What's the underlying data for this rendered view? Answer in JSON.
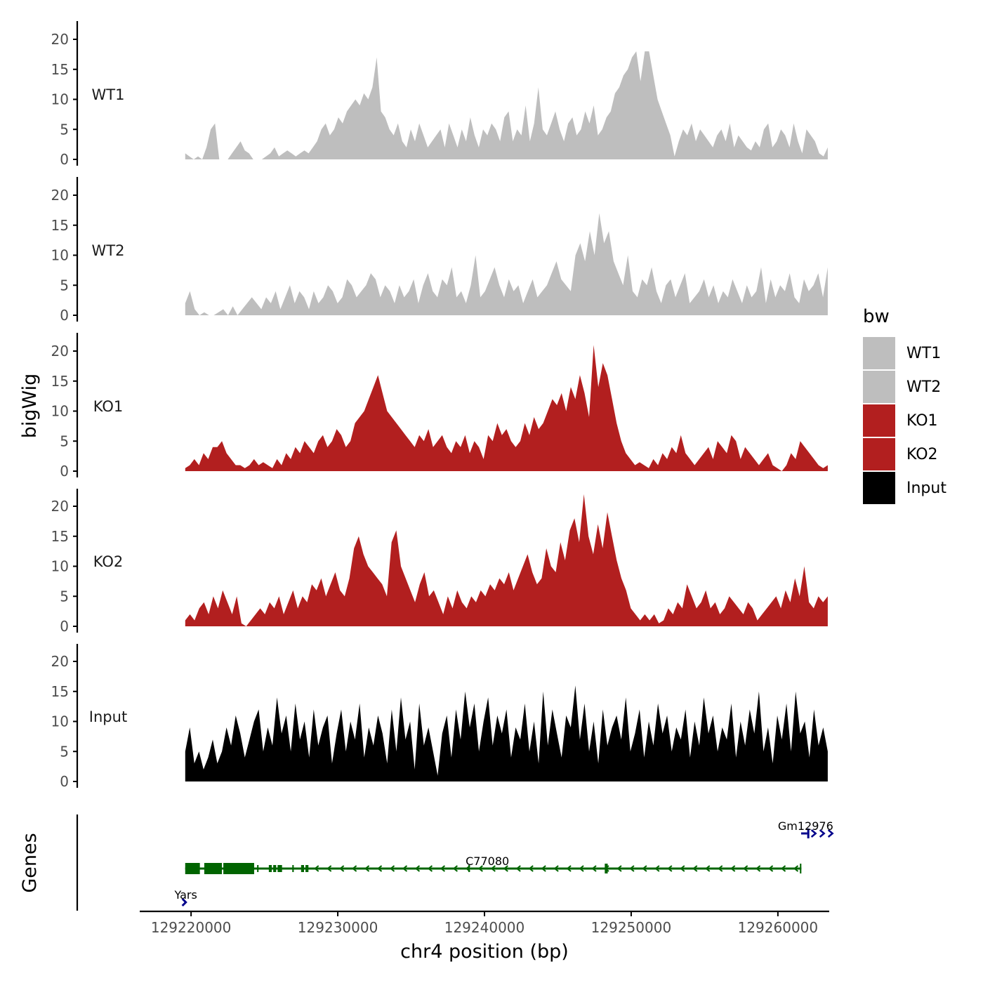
{
  "chart_data": {
    "type": "area",
    "ylabel": "bigWig",
    "xlabel": "chr4 position (bp)",
    "xlim": [
      129216500,
      129263500
    ],
    "ylim": [
      0,
      23
    ],
    "yticks": [
      0,
      5,
      10,
      15,
      20
    ],
    "xticks": [
      129220000,
      129230000,
      129240000,
      129250000,
      129260000
    ],
    "xtick_labels": [
      "129220000",
      "129230000",
      "129240000",
      "129250000",
      "129260000"
    ],
    "data_range": [
      129219600,
      129263400
    ],
    "tracks": [
      {
        "name": "WT1",
        "group": "WT1",
        "color": "#bebebe",
        "values": [
          1,
          0.5,
          0,
          0.5,
          0,
          2,
          5,
          6,
          0,
          0,
          0,
          1,
          2,
          3,
          1.5,
          1,
          0,
          0,
          0,
          0.5,
          1,
          2,
          0.5,
          1,
          1.5,
          1,
          0.5,
          1,
          1.5,
          1,
          2,
          3,
          5,
          6,
          4,
          5,
          7,
          6,
          8,
          9,
          10,
          9,
          11,
          10,
          12,
          17,
          8,
          7,
          5,
          4,
          6,
          3,
          2,
          5,
          3,
          6,
          4,
          2,
          3,
          4,
          5,
          2,
          6,
          4,
          2,
          5,
          3,
          7,
          4,
          2,
          5,
          4,
          6,
          5,
          3,
          7,
          8,
          3,
          5,
          4,
          9,
          3,
          6,
          12,
          5,
          4,
          6,
          8,
          5,
          3,
          6,
          7,
          4,
          5,
          8,
          6,
          9,
          4,
          5,
          7,
          8,
          11,
          12,
          14,
          15,
          17,
          18,
          13,
          18,
          18,
          14,
          10,
          8,
          6,
          4,
          0.5,
          3,
          5,
          4,
          6,
          3,
          5,
          4,
          3,
          2,
          4,
          5,
          3,
          6,
          2,
          4,
          3,
          2,
          1.5,
          3,
          2,
          5,
          6,
          2,
          3,
          5,
          4,
          2,
          6,
          3,
          1,
          5,
          4,
          3,
          1,
          0.5,
          2
        ]
      },
      {
        "name": "WT2",
        "group": "WT2",
        "color": "#bebebe",
        "values": [
          2,
          4,
          1,
          0,
          0.5,
          0,
          0,
          0.5,
          1,
          0,
          1.5,
          0,
          1,
          2,
          3,
          2,
          1,
          3,
          2,
          4,
          1,
          3,
          5,
          2,
          4,
          3,
          1,
          4,
          2,
          3,
          5,
          4,
          2,
          3,
          6,
          5,
          3,
          4,
          5,
          7,
          6,
          3,
          5,
          4,
          2,
          5,
          3,
          4,
          6,
          2,
          5,
          7,
          4,
          3,
          6,
          5,
          8,
          3,
          4,
          2,
          5,
          10,
          3,
          4,
          6,
          8,
          5,
          3,
          6,
          4,
          5,
          2,
          4,
          6,
          3,
          4,
          5,
          7,
          9,
          6,
          5,
          4,
          10,
          12,
          9,
          14,
          10,
          17,
          12,
          14,
          9,
          7,
          5,
          10,
          4,
          3,
          6,
          5,
          8,
          4,
          2,
          5,
          6,
          3,
          5,
          7,
          2,
          3,
          4,
          6,
          3,
          5,
          2,
          4,
          3,
          6,
          4,
          2,
          5,
          3,
          4,
          8,
          2,
          6,
          3,
          5,
          4,
          7,
          3,
          2,
          6,
          4,
          5,
          7,
          3,
          8
        ]
      },
      {
        "name": "KO1",
        "group": "KO1",
        "color": "#b21f1f",
        "values": [
          0.5,
          1,
          2,
          1,
          3,
          2,
          4,
          4,
          5,
          3,
          2,
          1,
          1,
          0.5,
          1,
          2,
          1,
          1.5,
          1,
          0.5,
          2,
          1,
          3,
          2,
          4,
          3,
          5,
          4,
          3,
          5,
          6,
          4,
          5,
          7,
          6,
          4,
          5,
          8,
          9,
          10,
          12,
          14,
          16,
          13,
          10,
          9,
          8,
          7,
          6,
          5,
          4,
          6,
          5,
          7,
          4,
          5,
          6,
          4,
          3,
          5,
          4,
          6,
          3,
          5,
          4,
          2,
          6,
          5,
          8,
          6,
          7,
          5,
          4,
          5,
          8,
          6,
          9,
          7,
          8,
          10,
          12,
          11,
          13,
          10,
          14,
          12,
          16,
          13,
          9,
          21,
          14,
          18,
          16,
          12,
          8,
          5,
          3,
          2,
          1,
          1.5,
          1,
          0.5,
          2,
          1,
          3,
          2,
          4,
          3,
          6,
          3,
          2,
          1,
          2,
          3,
          4,
          2,
          5,
          4,
          3,
          6,
          5,
          2,
          4,
          3,
          2,
          1,
          2,
          3,
          1,
          0.5,
          0,
          1,
          3,
          2,
          5,
          4,
          3,
          2,
          1,
          0.5,
          1
        ]
      },
      {
        "name": "KO2",
        "group": "KO2",
        "color": "#b21f1f",
        "values": [
          1,
          2,
          1,
          3,
          4,
          2,
          5,
          3,
          6,
          4,
          2,
          5,
          0.5,
          0,
          1,
          2,
          3,
          2,
          4,
          3,
          5,
          2,
          4,
          6,
          3,
          5,
          4,
          7,
          6,
          8,
          5,
          7,
          9,
          6,
          5,
          8,
          13,
          15,
          12,
          10,
          9,
          8,
          7,
          5,
          14,
          16,
          10,
          8,
          6,
          4,
          7,
          9,
          5,
          6,
          4,
          2,
          5,
          3,
          6,
          4,
          3,
          5,
          4,
          6,
          5,
          7,
          6,
          8,
          7,
          9,
          6,
          8,
          10,
          12,
          9,
          7,
          8,
          13,
          10,
          9,
          14,
          11,
          16,
          18,
          14,
          22,
          15,
          12,
          17,
          13,
          19,
          15,
          11,
          8,
          6,
          3,
          2,
          1,
          2,
          1,
          2,
          0.5,
          1,
          3,
          2,
          4,
          3,
          7,
          5,
          3,
          4,
          6,
          3,
          4,
          2,
          3,
          5,
          4,
          3,
          2,
          4,
          3,
          1,
          2,
          3,
          4,
          5,
          3,
          6,
          4,
          8,
          5,
          10,
          4,
          3,
          5,
          4,
          5
        ]
      },
      {
        "name": "Input",
        "group": "Input",
        "color": "#000000",
        "values": [
          5,
          9,
          3,
          5,
          2,
          4,
          7,
          3,
          5,
          9,
          6,
          11,
          8,
          4,
          7,
          10,
          12,
          5,
          9,
          6,
          14,
          8,
          11,
          5,
          13,
          7,
          10,
          4,
          12,
          6,
          9,
          11,
          3,
          8,
          12,
          5,
          10,
          7,
          13,
          4,
          9,
          6,
          11,
          8,
          3,
          12,
          5,
          14,
          7,
          10,
          2,
          13,
          6,
          9,
          5,
          1,
          8,
          11,
          4,
          12,
          7,
          15,
          9,
          13,
          5,
          10,
          14,
          6,
          11,
          8,
          12,
          4,
          9,
          7,
          13,
          5,
          10,
          3,
          15,
          6,
          12,
          8,
          4,
          11,
          9,
          16,
          7,
          13,
          5,
          10,
          3,
          12,
          6,
          9,
          11,
          7,
          14,
          5,
          8,
          12,
          4,
          10,
          6,
          13,
          8,
          11,
          5,
          9,
          7,
          12,
          4,
          10,
          6,
          14,
          8,
          11,
          5,
          9,
          7,
          13,
          4,
          10,
          6,
          12,
          8,
          15,
          5,
          9,
          3,
          11,
          7,
          13,
          5,
          15,
          8,
          10,
          4,
          12,
          6,
          9,
          5
        ]
      }
    ],
    "genes": [
      {
        "name": "Yars",
        "strand": "+",
        "start": 129219000,
        "end": 129220200,
        "color": "#00008b"
      },
      {
        "name": "C77080",
        "strand": "-",
        "start": 129219600,
        "end": 129261600,
        "color": "#006400"
      },
      {
        "name": "Gm12976",
        "strand": "+",
        "start": 129262000,
        "end": 129263500,
        "color": "#00008b"
      }
    ],
    "genes_label": "Genes",
    "legend": {
      "title": "bw",
      "position": "right",
      "items": [
        {
          "label": "WT1",
          "color": "#bebebe"
        },
        {
          "label": "WT2",
          "color": "#bebebe"
        },
        {
          "label": "KO1",
          "color": "#b21f1f"
        },
        {
          "label": "KO2",
          "color": "#b21f1f"
        },
        {
          "label": "Input",
          "color": "#000000"
        }
      ]
    }
  }
}
